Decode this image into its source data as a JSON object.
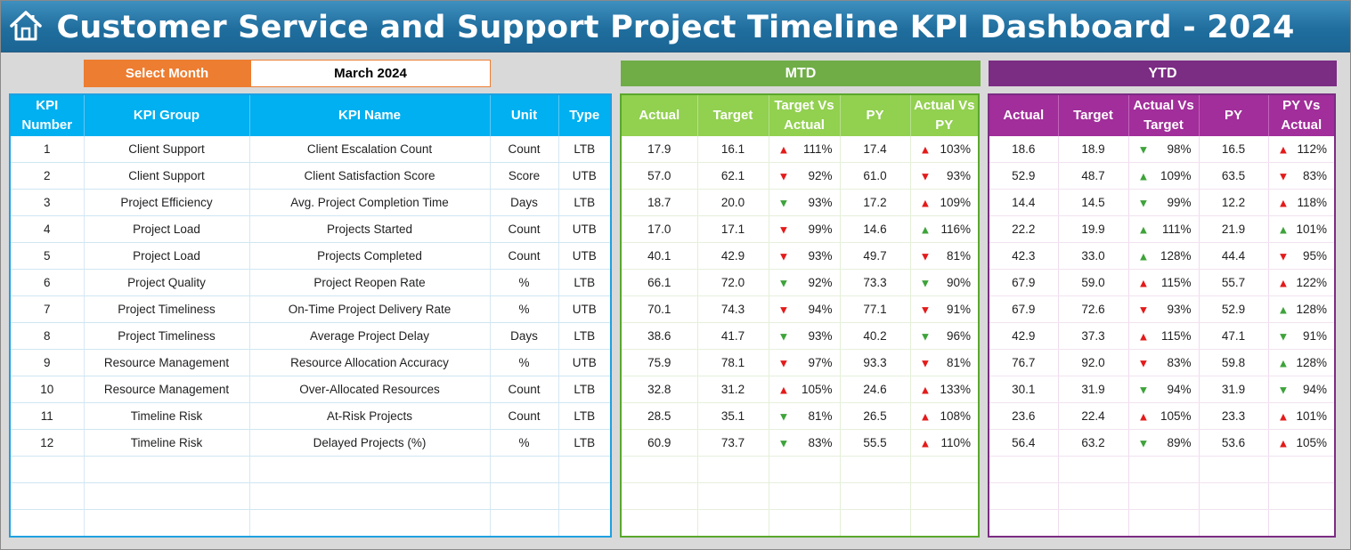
{
  "header": {
    "title": "Customer Service and Support Project Timeline KPI Dashboard - 2024",
    "home_icon": "home-icon"
  },
  "filter": {
    "label": "Select Month",
    "value": "March 2024"
  },
  "sections": {
    "mtd": "MTD",
    "ytd": "YTD"
  },
  "kpi_columns": [
    "KPI Number",
    "KPI Group",
    "KPI Name",
    "Unit",
    "Type"
  ],
  "mtd_columns": [
    "Actual",
    "Target",
    "Target Vs Actual",
    "PY",
    "Actual Vs PY"
  ],
  "ytd_columns": [
    "Actual",
    "Target",
    "Actual Vs Target",
    "PY",
    "PY Vs Actual"
  ],
  "colors": {
    "title_bar": "#1f6e9e",
    "select_label": "#ed7d31",
    "kpi_header": "#00b0f0",
    "mtd_header": "#92d050",
    "mtd_band": "#70ad47",
    "ytd_header": "#a12e9a",
    "ytd_band": "#7b2c83",
    "arrow_red": "#e31b1b",
    "arrow_green": "#3ea33a"
  },
  "rows": [
    {
      "num": "1",
      "group": "Client Support",
      "name": "Client Escalation Count",
      "unit": "Count",
      "type": "LTB",
      "mtd": {
        "actual": "17.9",
        "target": "16.1",
        "tva": "111%",
        "tva_arrow": "up-red",
        "py": "17.4",
        "avp": "103%",
        "avp_arrow": "up-red"
      },
      "ytd": {
        "actual": "18.6",
        "target": "18.9",
        "avt": "98%",
        "avt_arrow": "down-green",
        "py": "16.5",
        "pva": "112%",
        "pva_arrow": "up-red"
      }
    },
    {
      "num": "2",
      "group": "Client Support",
      "name": "Client Satisfaction Score",
      "unit": "Score",
      "type": "UTB",
      "mtd": {
        "actual": "57.0",
        "target": "62.1",
        "tva": "92%",
        "tva_arrow": "down-red",
        "py": "61.0",
        "avp": "93%",
        "avp_arrow": "down-red"
      },
      "ytd": {
        "actual": "52.9",
        "target": "48.7",
        "avt": "109%",
        "avt_arrow": "up-green",
        "py": "63.5",
        "pva": "83%",
        "pva_arrow": "down-red"
      }
    },
    {
      "num": "3",
      "group": "Project Efficiency",
      "name": "Avg. Project Completion Time",
      "unit": "Days",
      "type": "LTB",
      "mtd": {
        "actual": "18.7",
        "target": "20.0",
        "tva": "93%",
        "tva_arrow": "down-green",
        "py": "17.2",
        "avp": "109%",
        "avp_arrow": "up-red"
      },
      "ytd": {
        "actual": "14.4",
        "target": "14.5",
        "avt": "99%",
        "avt_arrow": "down-green",
        "py": "12.2",
        "pva": "118%",
        "pva_arrow": "up-red"
      }
    },
    {
      "num": "4",
      "group": "Project Load",
      "name": "Projects Started",
      "unit": "Count",
      "type": "UTB",
      "mtd": {
        "actual": "17.0",
        "target": "17.1",
        "tva": "99%",
        "tva_arrow": "down-red",
        "py": "14.6",
        "avp": "116%",
        "avp_arrow": "up-green"
      },
      "ytd": {
        "actual": "22.2",
        "target": "19.9",
        "avt": "111%",
        "avt_arrow": "up-green",
        "py": "21.9",
        "pva": "101%",
        "pva_arrow": "up-green"
      }
    },
    {
      "num": "5",
      "group": "Project Load",
      "name": "Projects Completed",
      "unit": "Count",
      "type": "UTB",
      "mtd": {
        "actual": "40.1",
        "target": "42.9",
        "tva": "93%",
        "tva_arrow": "down-red",
        "py": "49.7",
        "avp": "81%",
        "avp_arrow": "down-red"
      },
      "ytd": {
        "actual": "42.3",
        "target": "33.0",
        "avt": "128%",
        "avt_arrow": "up-green",
        "py": "44.4",
        "pva": "95%",
        "pva_arrow": "down-red"
      }
    },
    {
      "num": "6",
      "group": "Project Quality",
      "name": "Project Reopen Rate",
      "unit": "%",
      "type": "LTB",
      "mtd": {
        "actual": "66.1",
        "target": "72.0",
        "tva": "92%",
        "tva_arrow": "down-green",
        "py": "73.3",
        "avp": "90%",
        "avp_arrow": "down-green"
      },
      "ytd": {
        "actual": "67.9",
        "target": "59.0",
        "avt": "115%",
        "avt_arrow": "up-red",
        "py": "55.7",
        "pva": "122%",
        "pva_arrow": "up-red"
      }
    },
    {
      "num": "7",
      "group": "Project Timeliness",
      "name": "On-Time Project Delivery Rate",
      "unit": "%",
      "type": "UTB",
      "mtd": {
        "actual": "70.1",
        "target": "74.3",
        "tva": "94%",
        "tva_arrow": "down-red",
        "py": "77.1",
        "avp": "91%",
        "avp_arrow": "down-red"
      },
      "ytd": {
        "actual": "67.9",
        "target": "72.6",
        "avt": "93%",
        "avt_arrow": "down-red",
        "py": "52.9",
        "pva": "128%",
        "pva_arrow": "up-green"
      }
    },
    {
      "num": "8",
      "group": "Project Timeliness",
      "name": "Average Project Delay",
      "unit": "Days",
      "type": "LTB",
      "mtd": {
        "actual": "38.6",
        "target": "41.7",
        "tva": "93%",
        "tva_arrow": "down-green",
        "py": "40.2",
        "avp": "96%",
        "avp_arrow": "down-green"
      },
      "ytd": {
        "actual": "42.9",
        "target": "37.3",
        "avt": "115%",
        "avt_arrow": "up-red",
        "py": "47.1",
        "pva": "91%",
        "pva_arrow": "down-green"
      }
    },
    {
      "num": "9",
      "group": "Resource Management",
      "name": "Resource Allocation Accuracy",
      "unit": "%",
      "type": "UTB",
      "mtd": {
        "actual": "75.9",
        "target": "78.1",
        "tva": "97%",
        "tva_arrow": "down-red",
        "py": "93.3",
        "avp": "81%",
        "avp_arrow": "down-red"
      },
      "ytd": {
        "actual": "76.7",
        "target": "92.0",
        "avt": "83%",
        "avt_arrow": "down-red",
        "py": "59.8",
        "pva": "128%",
        "pva_arrow": "up-green"
      }
    },
    {
      "num": "10",
      "group": "Resource Management",
      "name": "Over-Allocated Resources",
      "unit": "Count",
      "type": "LTB",
      "mtd": {
        "actual": "32.8",
        "target": "31.2",
        "tva": "105%",
        "tva_arrow": "up-red",
        "py": "24.6",
        "avp": "133%",
        "avp_arrow": "up-red"
      },
      "ytd": {
        "actual": "30.1",
        "target": "31.9",
        "avt": "94%",
        "avt_arrow": "down-green",
        "py": "31.9",
        "pva": "94%",
        "pva_arrow": "down-green"
      }
    },
    {
      "num": "11",
      "group": "Timeline Risk",
      "name": "At-Risk Projects",
      "unit": "Count",
      "type": "LTB",
      "mtd": {
        "actual": "28.5",
        "target": "35.1",
        "tva": "81%",
        "tva_arrow": "down-green",
        "py": "26.5",
        "avp": "108%",
        "avp_arrow": "up-red"
      },
      "ytd": {
        "actual": "23.6",
        "target": "22.4",
        "avt": "105%",
        "avt_arrow": "up-red",
        "py": "23.3",
        "pva": "101%",
        "pva_arrow": "up-red"
      }
    },
    {
      "num": "12",
      "group": "Timeline Risk",
      "name": "Delayed Projects (%)",
      "unit": "%",
      "type": "LTB",
      "mtd": {
        "actual": "60.9",
        "target": "73.7",
        "tva": "83%",
        "tva_arrow": "down-green",
        "py": "55.5",
        "avp": "110%",
        "avp_arrow": "up-red"
      },
      "ytd": {
        "actual": "56.4",
        "target": "63.2",
        "avt": "89%",
        "avt_arrow": "down-green",
        "py": "53.6",
        "pva": "105%",
        "pva_arrow": "up-red"
      }
    }
  ],
  "empty_rows": 3
}
